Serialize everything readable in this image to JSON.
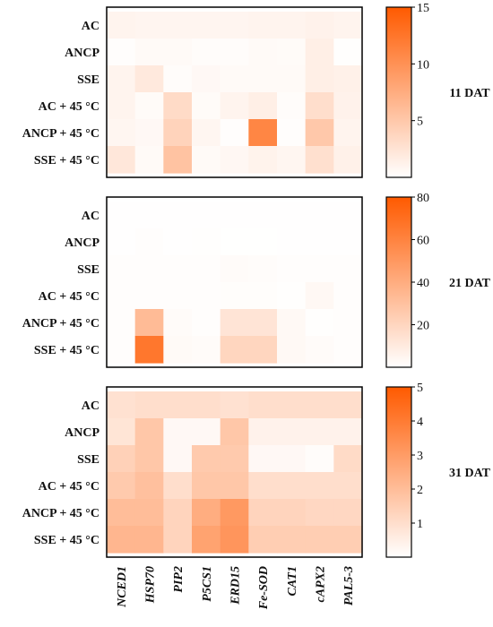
{
  "chart_data": {
    "type": "heatmap",
    "rows": [
      "AC",
      "ANCP",
      "SSE",
      "AC + 45 °C",
      "ANCP + 45 °C",
      "SSE + 45 °C"
    ],
    "columns": [
      "NCED1",
      "HSP70",
      "PIP2",
      "P5CS1",
      "ERD15",
      "Fe-SOD",
      "CAT1",
      "cAPX2",
      "PAL5-3"
    ],
    "colormap": {
      "low": "#ffffff",
      "high": "#ff5a00"
    },
    "panels": [
      {
        "label": "11 DAT",
        "scale": {
          "min": 0,
          "max": 15,
          "ticks": [
            5,
            10,
            15
          ]
        },
        "values": [
          [
            1.0,
            0.9,
            0.9,
            0.9,
            0.9,
            1.0,
            1.0,
            1.2,
            1.0
          ],
          [
            0.2,
            0.5,
            0.5,
            0.3,
            0.3,
            0.5,
            0.4,
            1.5,
            0.1
          ],
          [
            1.0,
            2.0,
            0.3,
            0.6,
            0.5,
            0.5,
            0.5,
            1.5,
            1.3
          ],
          [
            1.0,
            0.4,
            3.3,
            0.4,
            1.0,
            1.5,
            0.3,
            3.0,
            1.2
          ],
          [
            0.8,
            0.6,
            4.0,
            0.8,
            0.2,
            11.0,
            0.2,
            5.0,
            1.0
          ],
          [
            2.2,
            0.5,
            5.5,
            0.5,
            0.7,
            1.1,
            0.8,
            2.8,
            1.3
          ]
        ]
      },
      {
        "label": "21 DAT",
        "scale": {
          "min": 0,
          "max": 80,
          "ticks": [
            20,
            40,
            60,
            80
          ]
        },
        "values": [
          [
            0.3,
            0.3,
            0.3,
            0.3,
            0.3,
            0.3,
            0.3,
            0.3,
            0.3
          ],
          [
            0.3,
            1.0,
            0.3,
            0.6,
            0.2,
            0.2,
            0.3,
            0.4,
            0.4
          ],
          [
            0.8,
            0.8,
            0.8,
            0.8,
            2.0,
            1.5,
            0.8,
            1.0,
            0.8
          ],
          [
            1.0,
            1.0,
            1.0,
            1.0,
            1.2,
            1.2,
            0.5,
            3.5,
            0.8
          ],
          [
            0.8,
            33.0,
            2.0,
            1.0,
            13.0,
            13.0,
            3.0,
            0.5,
            1.0
          ],
          [
            1.0,
            66.0,
            2.5,
            2.0,
            20.0,
            20.0,
            3.0,
            2.0,
            1.0
          ]
        ]
      },
      {
        "label": "31 DAT",
        "scale": {
          "min": 0,
          "max": 5,
          "ticks": [
            1,
            2,
            3,
            4,
            5
          ]
        },
        "values": [
          [
            0.9,
            1.0,
            1.0,
            1.0,
            0.9,
            1.0,
            1.0,
            1.0,
            1.0
          ],
          [
            0.8,
            1.7,
            0.2,
            0.2,
            1.7,
            0.4,
            0.4,
            0.4,
            0.4
          ],
          [
            1.4,
            1.7,
            0.2,
            1.6,
            1.6,
            0.2,
            0.2,
            0.1,
            1.1
          ],
          [
            1.6,
            1.9,
            1.0,
            1.7,
            1.7,
            1.0,
            1.0,
            1.0,
            1.0
          ],
          [
            2.0,
            2.0,
            1.3,
            2.5,
            3.1,
            1.3,
            1.3,
            1.2,
            1.2
          ],
          [
            2.2,
            2.2,
            1.3,
            2.8,
            3.2,
            1.5,
            1.5,
            1.5,
            1.5
          ]
        ]
      }
    ]
  }
}
